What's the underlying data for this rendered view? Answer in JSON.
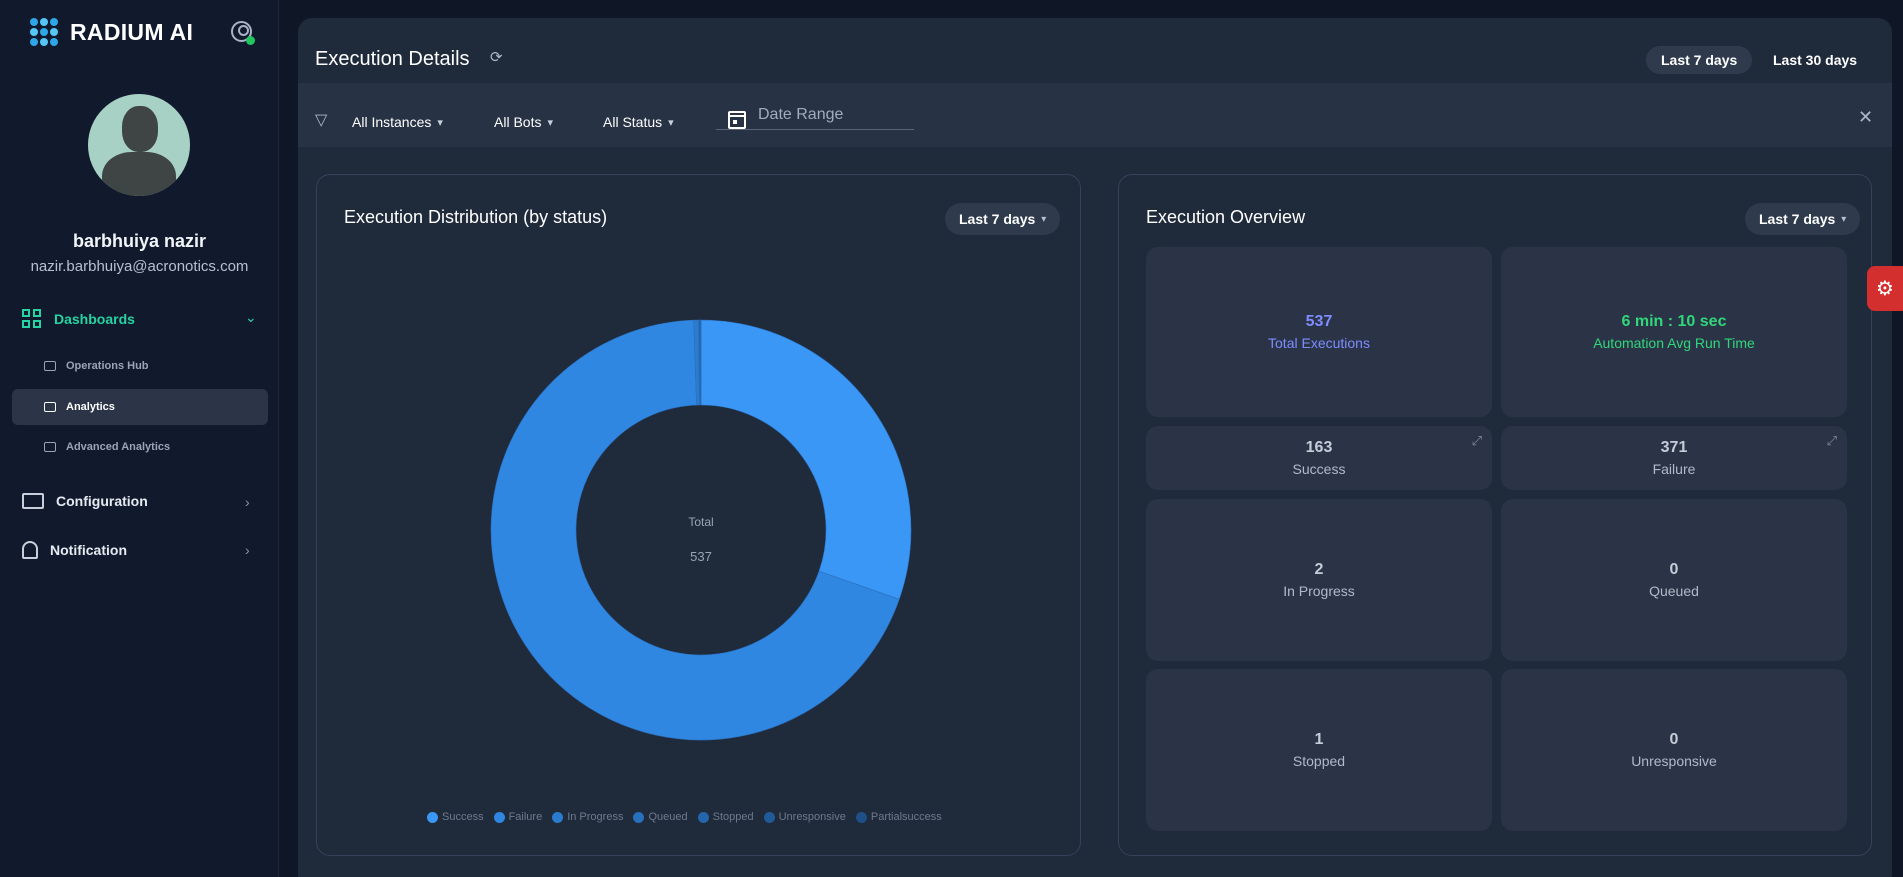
{
  "brand": {
    "name": "RADIUM AI"
  },
  "user": {
    "name": "barbhuiya nazir",
    "email": "nazir.barbhuiya@acronotics.com"
  },
  "sidebar": {
    "dashboards_label": "Dashboards",
    "sub_items": [
      {
        "label": "Operations Hub",
        "icon": "monitor-icon"
      },
      {
        "label": "Analytics",
        "icon": "bar-chart-icon",
        "active": true
      },
      {
        "label": "Advanced Analytics",
        "icon": "chart-box-icon"
      }
    ],
    "configuration_label": "Configuration",
    "notification_label": "Notification"
  },
  "header": {
    "title": "Execution Details",
    "range_options": [
      "Last 7 days",
      "Last 30 days"
    ],
    "selected_range": "Last 7 days"
  },
  "filters": {
    "instances": "All Instances",
    "bots": "All Bots",
    "status": "All Status",
    "date_range_placeholder": "Date Range"
  },
  "distribution": {
    "title": "Execution Distribution (by status)",
    "range": "Last 7 days",
    "center_label": "Total",
    "center_value": "537"
  },
  "chart_data": {
    "type": "pie",
    "categories": [
      "Success",
      "Failure",
      "In Progress",
      "Queued",
      "Stopped",
      "Unresponsive",
      "Partialsuccess"
    ],
    "values": [
      163,
      371,
      2,
      0,
      1,
      0,
      0
    ],
    "colors": [
      "#3a97f5",
      "#2f87e1",
      "#2a7ccf",
      "#2770bd",
      "#2465ab",
      "#215a99",
      "#1e5087"
    ],
    "title": "Execution Distribution (by status)",
    "legend": "bottom"
  },
  "overview": {
    "title": "Execution Overview",
    "range": "Last 7 days",
    "total": {
      "value": "537",
      "label": "Total Executions",
      "color": "#7f8cff"
    },
    "avg_run": {
      "value": "6 min : 10 sec",
      "label": "Automation Avg Run Time",
      "color": "#31d67b"
    },
    "success": {
      "value": "163",
      "label": "Success"
    },
    "failure": {
      "value": "371",
      "label": "Failure"
    },
    "in_progress": {
      "value": "2",
      "label": "In Progress"
    },
    "queued": {
      "value": "0",
      "label": "Queued"
    },
    "stopped": {
      "value": "1",
      "label": "Stopped"
    },
    "unresponsive": {
      "value": "0",
      "label": "Unresponsive"
    }
  }
}
